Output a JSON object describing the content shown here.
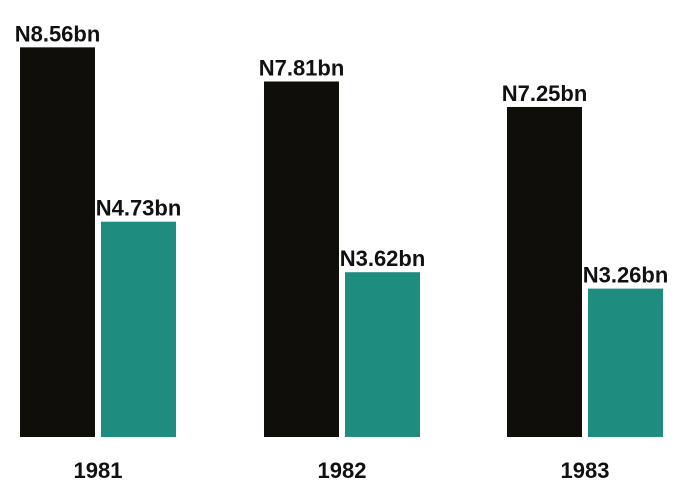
{
  "chart_data": {
    "type": "bar",
    "categories": [
      "1981",
      "1982",
      "1983"
    ],
    "series": [
      {
        "color": "#0f0e0a",
        "values": [
          8.56,
          7.81,
          7.25
        ],
        "value_labels": [
          "N8.56bn",
          "N7.81bn",
          "N7.25bn"
        ]
      },
      {
        "color": "#1f8c80",
        "values": [
          4.73,
          3.62,
          3.26
        ],
        "value_labels": [
          "N4.73bn",
          "N3.62bn",
          "N3.26bn"
        ]
      }
    ],
    "ylim": [
      0,
      9.6
    ]
  }
}
